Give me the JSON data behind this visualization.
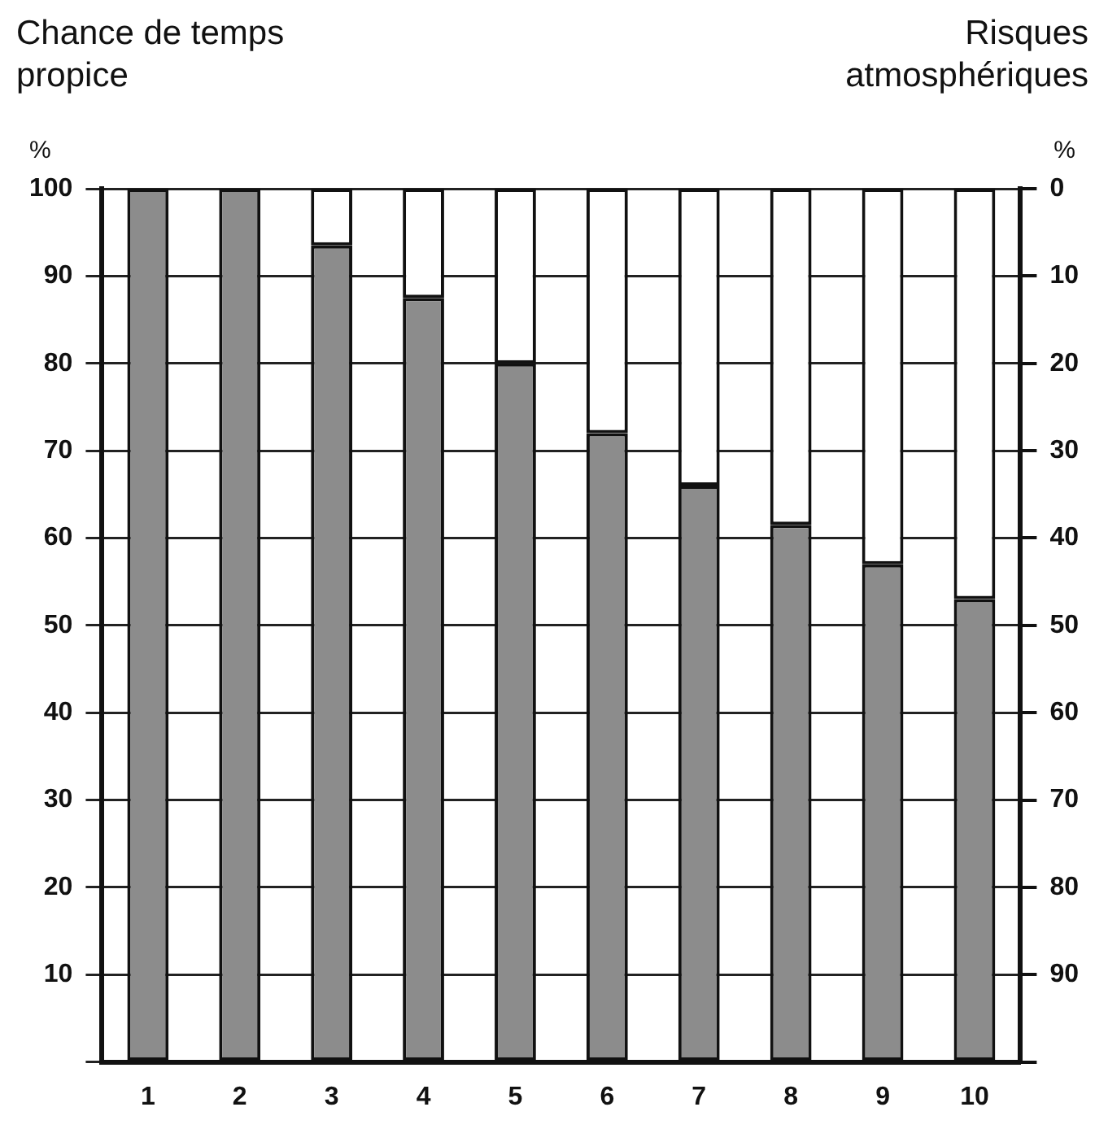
{
  "chart_data": {
    "type": "bar",
    "ylabel": "Chance de temps propice",
    "y2label": "Risques atmosphériques",
    "annotations": [
      "%",
      "%"
    ],
    "categories": [
      "1",
      "2",
      "3",
      "4",
      "5",
      "6",
      "7",
      "8",
      "9",
      "10"
    ],
    "stacked": true,
    "series": [
      {
        "color": "#8c8c8c",
        "values": [
          100,
          100,
          93.5,
          87.5,
          80,
          72,
          66,
          61.5,
          57,
          53
        ]
      },
      {
        "color": "#ffffff",
        "values": [
          0,
          0,
          6.5,
          12.5,
          20,
          28,
          34,
          38.5,
          43,
          47
        ]
      }
    ],
    "ylim": [
      0,
      100
    ],
    "yticks": [
      {
        "value": 0,
        "label": null
      },
      10,
      20,
      30,
      40,
      50,
      60,
      70,
      80,
      90,
      100
    ],
    "y2lim": [
      100,
      0
    ],
    "y2ticks": [
      0,
      10,
      20,
      30,
      40,
      50,
      60,
      70,
      80,
      90,
      {
        "value": 100,
        "label": null
      }
    ],
    "grid": "y",
    "legend": false
  }
}
